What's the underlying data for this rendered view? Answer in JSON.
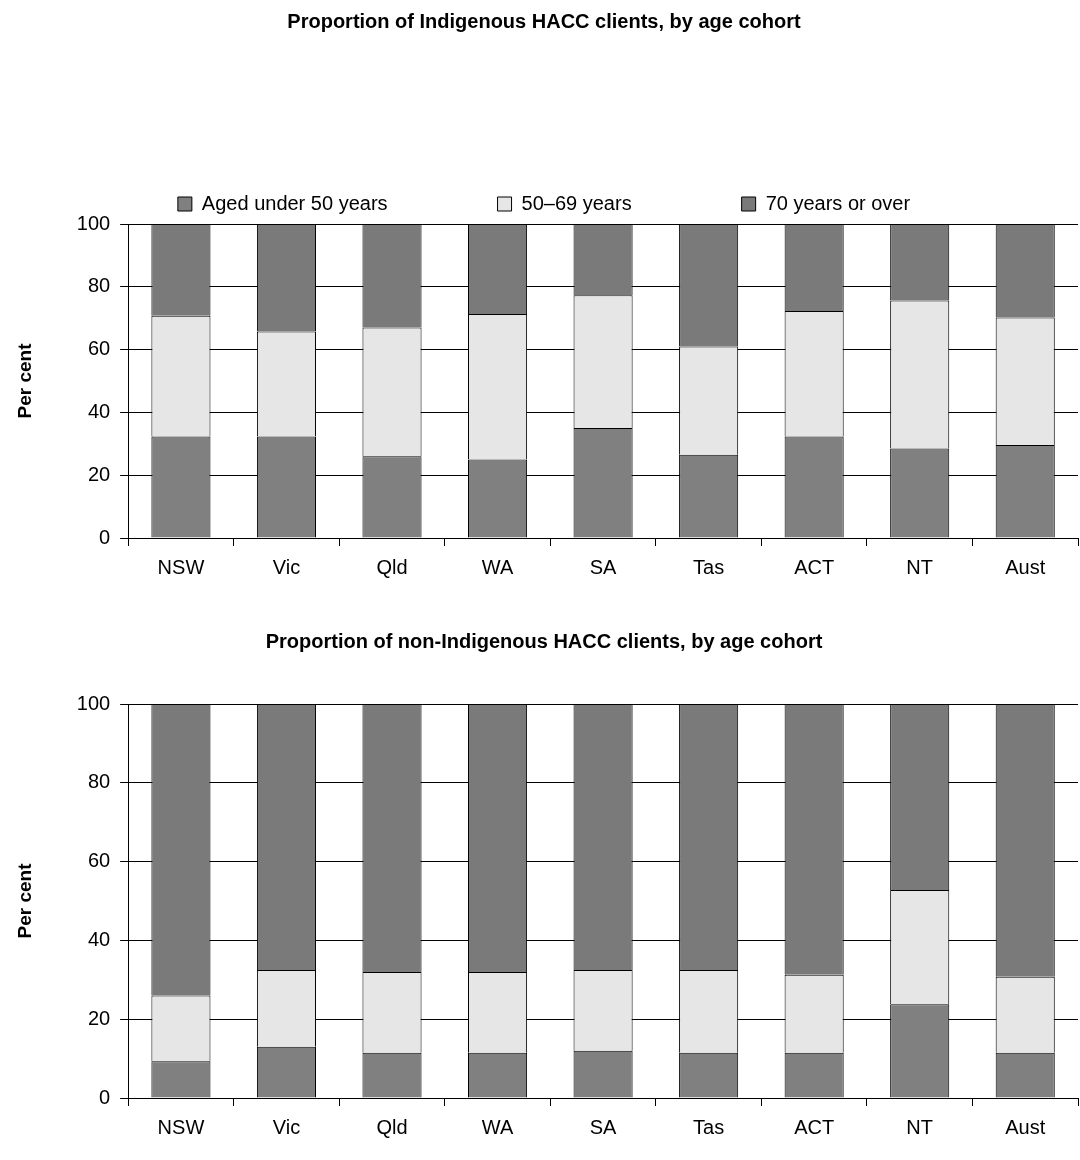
{
  "chart_data": [
    {
      "type": "bar",
      "title": "Proportion of Indigenous HACC clients, by age cohort",
      "ylabel": "Per cent",
      "stacked": true,
      "categories": [
        "NSW",
        "Vic",
        "Qld",
        "WA",
        "SA",
        "Tas",
        "ACT",
        "NT",
        "Aust"
      ],
      "ylim": [
        0,
        100
      ],
      "yticks": [
        0,
        20,
        40,
        60,
        80,
        100
      ],
      "grid": "y",
      "legend": "top",
      "series": [
        {
          "name": "Aged under 50 years",
          "color": "#808080",
          "values": [
            32.3,
            32.3,
            26,
            25,
            35,
            26.5,
            32.3,
            28.5,
            29.6
          ]
        },
        {
          "name": "50–69 years",
          "color": "#e6e6e6",
          "values": [
            38.5,
            33.5,
            41,
            46.3,
            42.3,
            34.5,
            40,
            47.1,
            40.6
          ]
        },
        {
          "name": "70 years or over",
          "color": "#7a7a7a",
          "values": [
            29.2,
            34.2,
            33,
            28.7,
            22.7,
            39,
            27.7,
            24.4,
            29.8
          ]
        }
      ]
    },
    {
      "type": "bar",
      "title": "Proportion of non-Indigenous HACC clients, by age cohort",
      "ylabel": "Per cent",
      "stacked": true,
      "categories": [
        "NSW",
        "Vic",
        "Qld",
        "WA",
        "SA",
        "Tas",
        "ACT",
        "NT",
        "Aust"
      ],
      "ylim": [
        0,
        100
      ],
      "yticks": [
        0,
        20,
        40,
        60,
        80,
        100
      ],
      "grid": "y",
      "series": [
        {
          "color": "#808080",
          "values": [
            9.3,
            13,
            11.5,
            11.5,
            12,
            11.5,
            11.5,
            23.8,
            11.5
          ]
        },
        {
          "color": "#e6e6e6",
          "values": [
            16.7,
            19.5,
            20.5,
            20.5,
            20.5,
            21,
            19.8,
            29,
            19.3
          ]
        },
        {
          "color": "#7a7a7a",
          "values": [
            74,
            67.5,
            68,
            68,
            67.5,
            67.5,
            68.7,
            47.2,
            69.2
          ]
        }
      ]
    }
  ]
}
